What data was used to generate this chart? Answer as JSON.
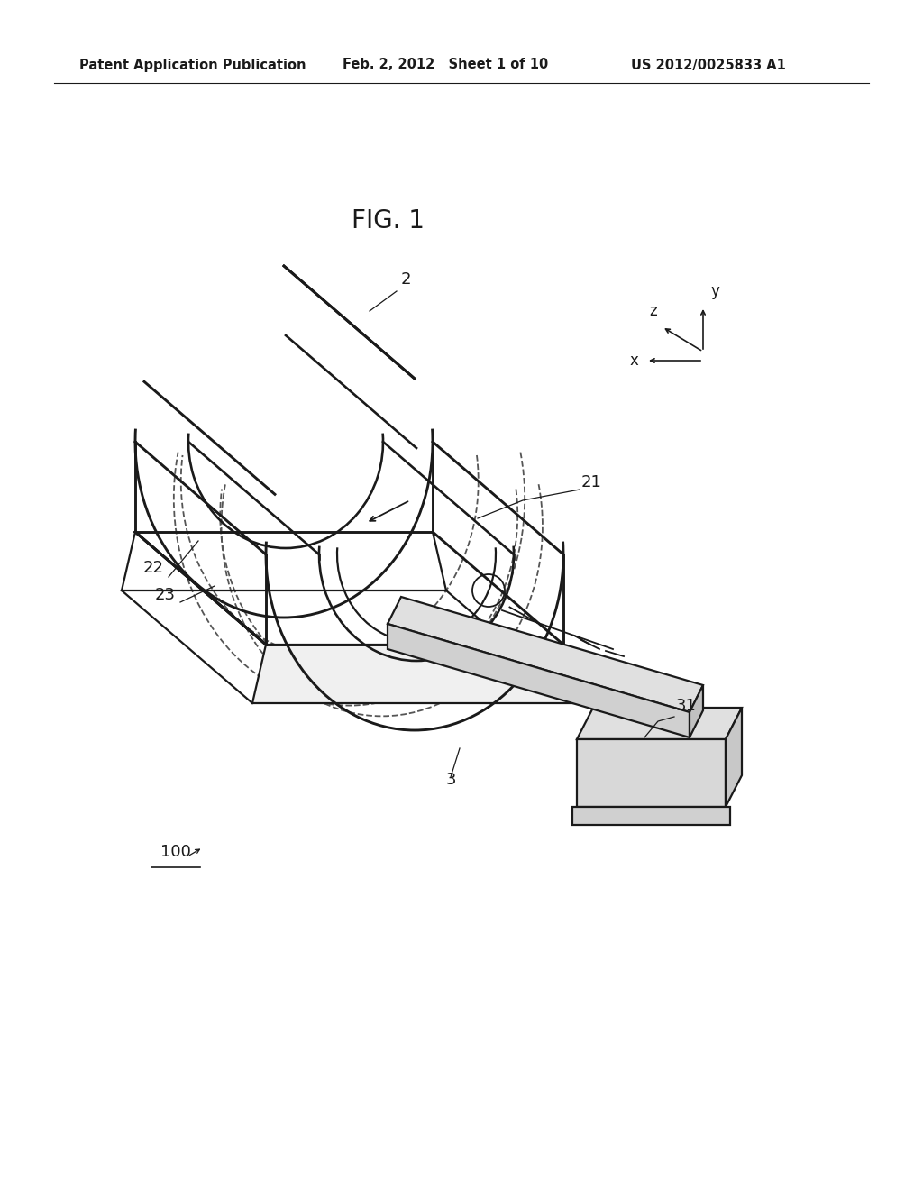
{
  "background_color": "#ffffff",
  "line_color": "#1a1a1a",
  "dashed_color": "#555555",
  "header_left": "Patent Application Publication",
  "header_mid": "Feb. 2, 2012   Sheet 1 of 10",
  "header_right": "US 2012/0025833 A1",
  "fig_label": "FIG. 1",
  "label_fontsize": 13,
  "header_fontsize": 10.5,
  "fig_fontsize": 20
}
